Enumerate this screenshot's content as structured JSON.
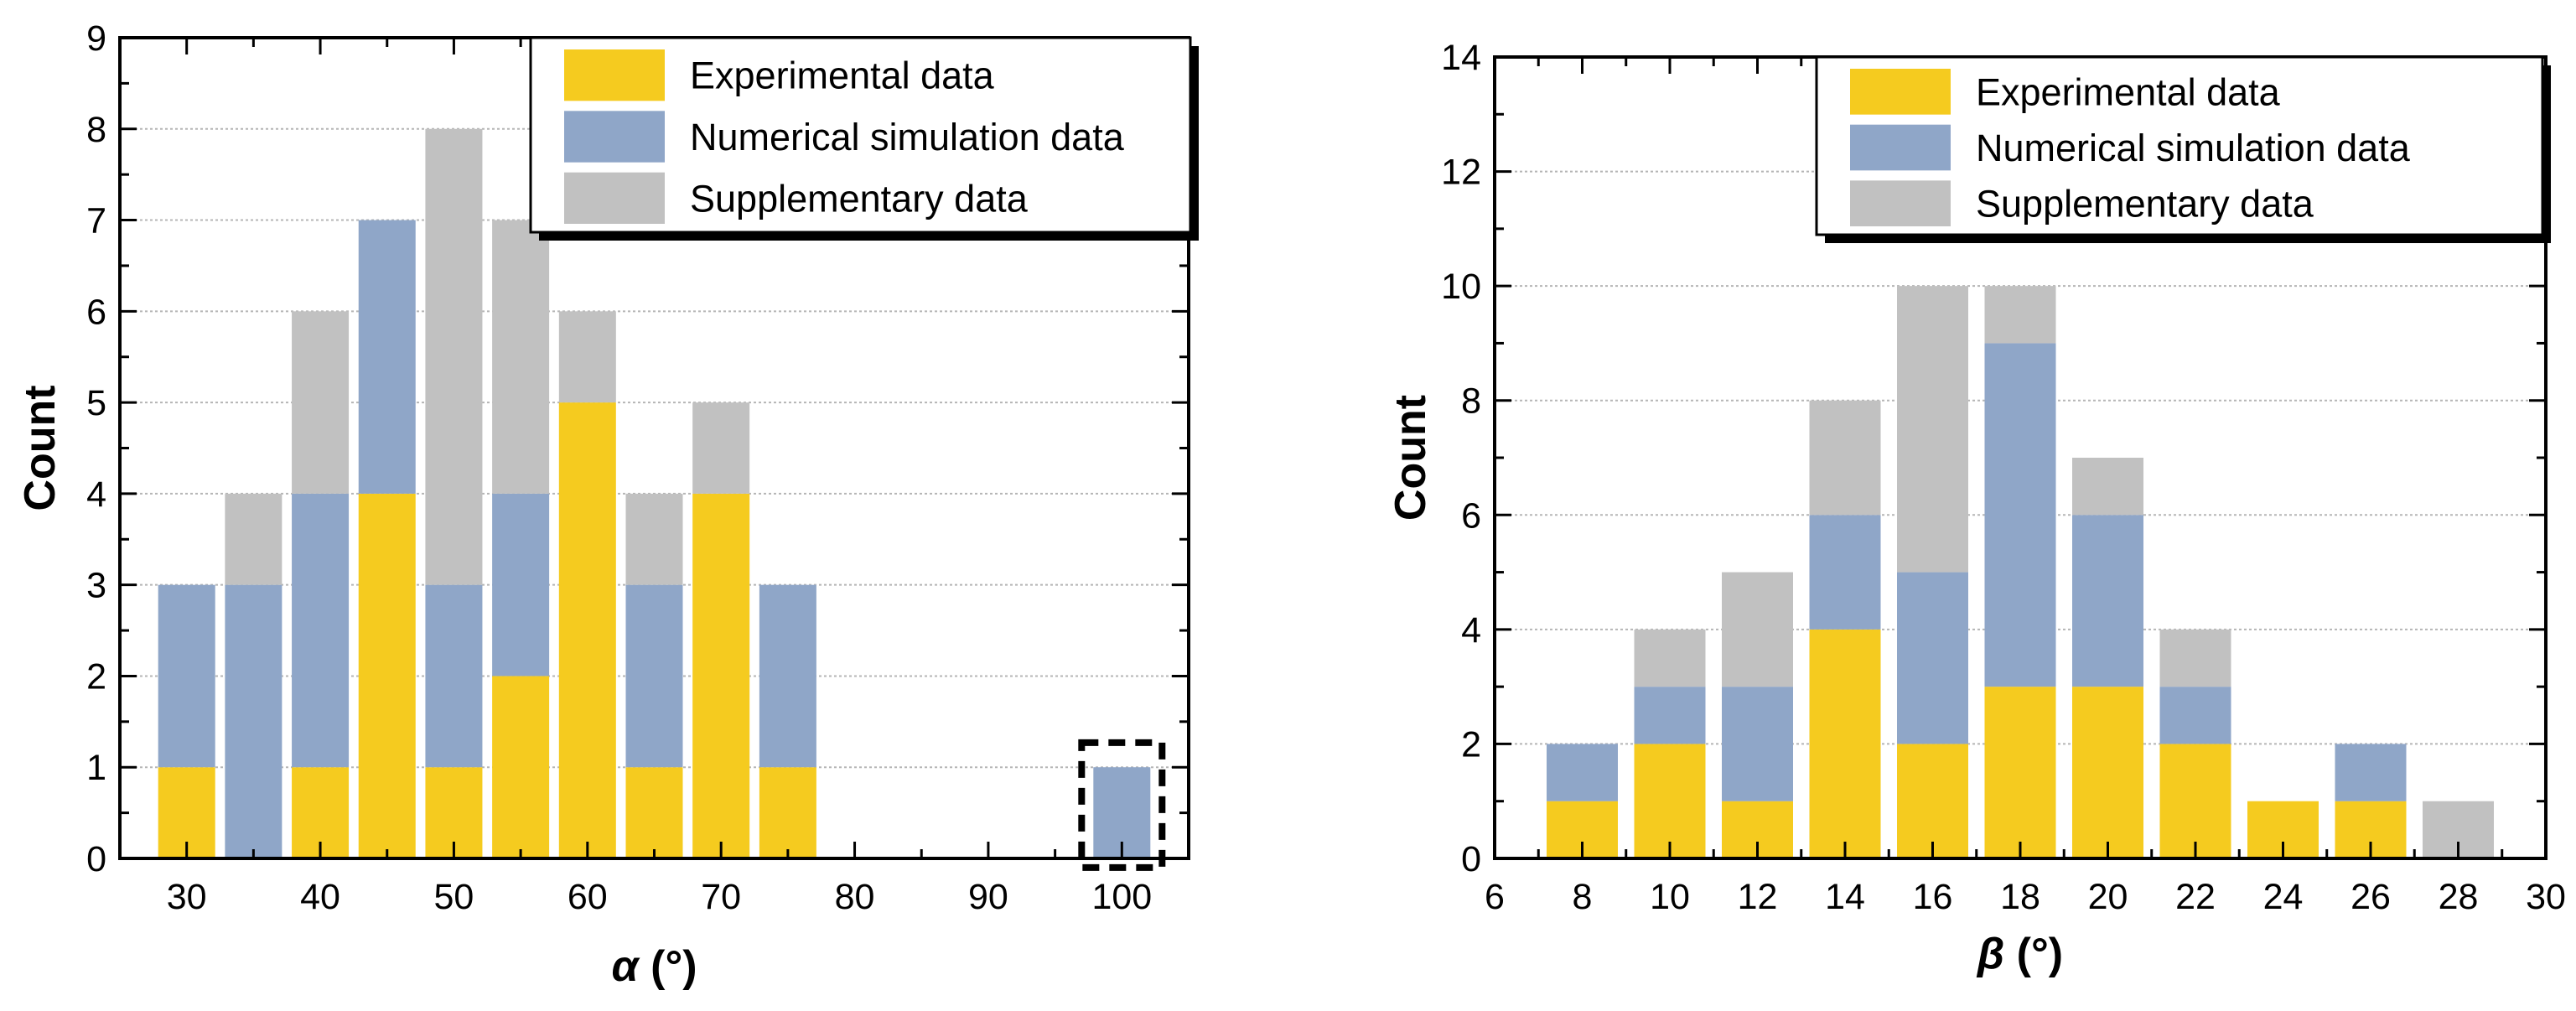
{
  "legend": {
    "experimental": "Experimental data",
    "numerical": "Numerical simulation data",
    "supplementary": "Supplementary data"
  },
  "colors": {
    "experimental": "#f5cb1f",
    "numerical": "#8fa6c8",
    "supplementary": "#c1c1c1"
  },
  "chart_data": [
    {
      "type": "bar",
      "stacked": true,
      "xlabel": "α (°)",
      "ylabel": "Count",
      "xlim": [
        25,
        105
      ],
      "ylim": [
        0,
        9
      ],
      "xticks": [
        30,
        40,
        50,
        60,
        70,
        80,
        90,
        100
      ],
      "yticks": [
        0,
        1,
        2,
        3,
        4,
        5,
        6,
        7,
        8,
        9
      ],
      "grid": true,
      "legend_position": "top-right",
      "x": [
        30,
        35,
        40,
        45,
        50,
        55,
        60,
        65,
        70,
        75,
        100
      ],
      "series": [
        {
          "name": "Experimental data",
          "key": "experimental",
          "values": [
            1,
            0,
            1,
            4,
            1,
            2,
            5,
            1,
            4,
            1,
            0
          ]
        },
        {
          "name": "Numerical simulation data",
          "key": "numerical",
          "values": [
            2,
            3,
            3,
            3,
            2,
            2,
            0,
            2,
            0,
            2,
            1
          ]
        },
        {
          "name": "Supplementary data",
          "key": "supplementary",
          "values": [
            0,
            1,
            2,
            0,
            5,
            3,
            1,
            1,
            1,
            0,
            0
          ]
        }
      ],
      "annotation": {
        "type": "dashed-box",
        "highlights_x": 100
      }
    },
    {
      "type": "bar",
      "stacked": true,
      "xlabel": "β (°)",
      "ylabel": "Count",
      "xlim": [
        6,
        30
      ],
      "ylim": [
        0,
        14
      ],
      "xticks": [
        6,
        8,
        10,
        12,
        14,
        16,
        18,
        20,
        22,
        24,
        26,
        28,
        30
      ],
      "yticks": [
        0,
        2,
        4,
        6,
        8,
        10,
        12,
        14
      ],
      "grid": true,
      "legend_position": "top-right",
      "x": [
        8,
        10,
        12,
        14,
        16,
        18,
        20,
        22,
        24,
        26,
        28
      ],
      "series": [
        {
          "name": "Experimental data",
          "key": "experimental",
          "values": [
            1,
            2,
            1,
            4,
            2,
            3,
            3,
            2,
            1,
            1,
            0
          ]
        },
        {
          "name": "Numerical simulation data",
          "key": "numerical",
          "values": [
            1,
            1,
            2,
            2,
            3,
            6,
            3,
            1,
            0,
            1,
            0
          ]
        },
        {
          "name": "Supplementary data",
          "key": "supplementary",
          "values": [
            0,
            1,
            2,
            2,
            5,
            1,
            1,
            1,
            0,
            0,
            1
          ]
        }
      ]
    }
  ]
}
